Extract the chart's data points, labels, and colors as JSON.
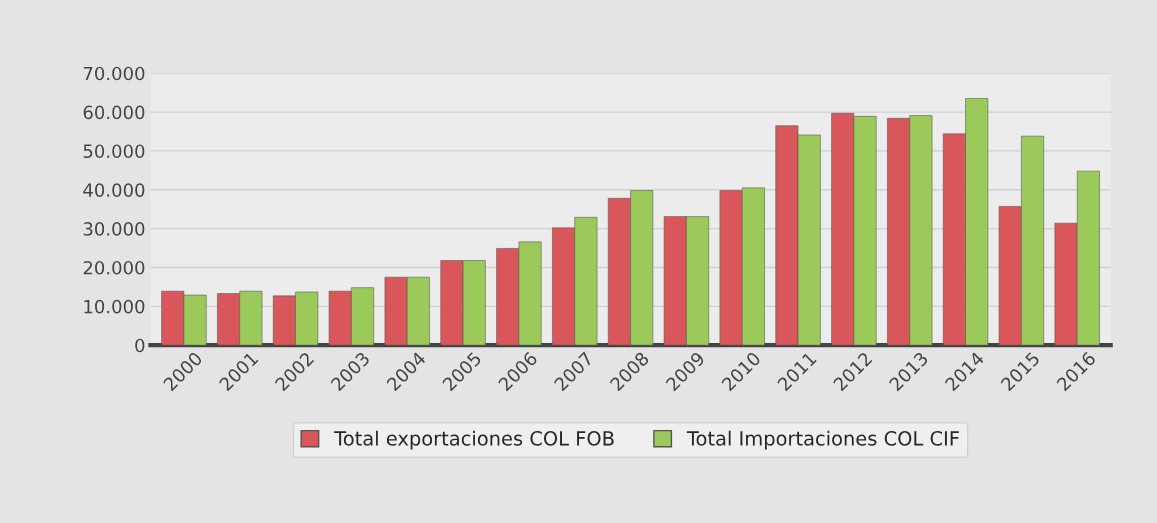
{
  "chart_data": {
    "type": "bar",
    "categories": [
      "2000",
      "2001",
      "2002",
      "2003",
      "2004",
      "2005",
      "2006",
      "2007",
      "2008",
      "2009",
      "2010",
      "2011",
      "2012",
      "2013",
      "2014",
      "2015",
      "2016"
    ],
    "series": [
      {
        "name": "Total exportaciones COL FOB",
        "color": "#d9575b",
        "values": [
          13900,
          13300,
          12700,
          13900,
          17500,
          21800,
          24900,
          30200,
          37800,
          33100,
          39800,
          56500,
          59700,
          58400,
          54400,
          35700,
          31400
        ]
      },
      {
        "name": "Total Importaciones COL CIF",
        "color": "#9bc95a",
        "values": [
          12900,
          13900,
          13700,
          14800,
          17500,
          21800,
          26600,
          32900,
          39800,
          33100,
          40500,
          54100,
          58900,
          59100,
          63500,
          53800,
          44800
        ]
      }
    ],
    "ylim": [
      0,
      70000
    ],
    "yticks": [
      {
        "value": 0,
        "label": "0"
      },
      {
        "value": 10000,
        "label": "10.000"
      },
      {
        "value": 20000,
        "label": "20.000"
      },
      {
        "value": 30000,
        "label": "30.000"
      },
      {
        "value": 40000,
        "label": "40.000"
      },
      {
        "value": 50000,
        "label": "50.000"
      },
      {
        "value": 60000,
        "label": "60.000"
      },
      {
        "value": 70000,
        "label": "70.000"
      }
    ],
    "grid": "y",
    "legend": "bottom"
  }
}
